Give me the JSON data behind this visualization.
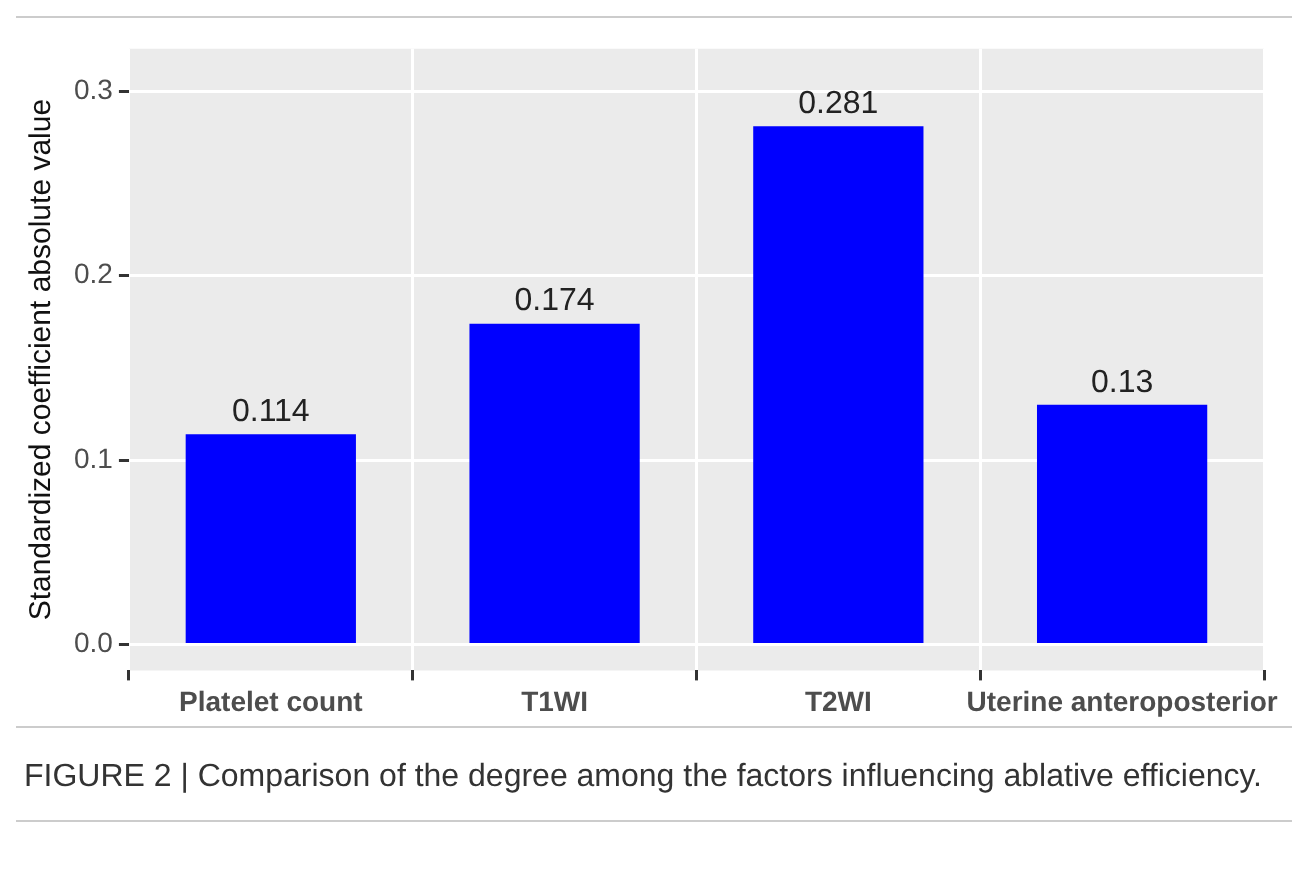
{
  "chart_data": {
    "type": "bar",
    "ylabel": "Standardized coefficient absolute value",
    "categories": [
      "Platelet count",
      "T1WI",
      "T2WI",
      "Uterine anteroposterior"
    ],
    "values": [
      0.114,
      0.174,
      0.281,
      0.13
    ],
    "color": "#0000ff",
    "ylim": [
      -0.014,
      0.323
    ],
    "yticks": [
      {
        "value": 0,
        "label": "0.0"
      },
      {
        "value": 0.1,
        "label": "0.1"
      },
      {
        "value": 0.2,
        "label": "0.2"
      },
      {
        "value": 0.3,
        "label": "0.3"
      }
    ],
    "grid": true,
    "data_labels": true,
    "annotations": [
      "FIGURE 2 | Comparison of the degree among the factors influencing ablative efficiency."
    ]
  }
}
